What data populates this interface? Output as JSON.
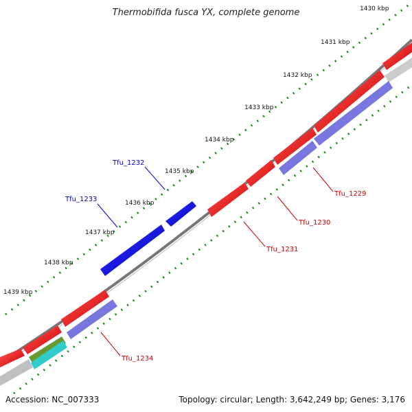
{
  "title": "Thermobifida fusca YX, complete genome",
  "footer": {
    "accession": "Accession: NC_007333",
    "summary": "Topology: circular; Length: 3,642,249 bp; Genes: 3,176"
  },
  "ticks": [
    {
      "label": "1430 kbp"
    },
    {
      "label": "1431 kbp"
    },
    {
      "label": "1432 kbp"
    },
    {
      "label": "1433 kbp"
    },
    {
      "label": "1434 kbp"
    },
    {
      "label": "1435 kbp"
    },
    {
      "label": "1436 kbp"
    },
    {
      "label": "1437 kbp"
    },
    {
      "label": "1438 kbp"
    },
    {
      "label": "1439 kbp"
    }
  ],
  "genes": [
    {
      "label": "Tfu_1229",
      "strand": "reverse",
      "color": "#cc0000"
    },
    {
      "label": "Tfu_1230",
      "strand": "reverse",
      "color": "#cc0000"
    },
    {
      "label": "Tfu_1231",
      "strand": "reverse",
      "color": "#cc0000"
    },
    {
      "label": "Tfu_1232",
      "strand": "forward",
      "color": "#0000cc"
    },
    {
      "label": "Tfu_1233",
      "strand": "forward",
      "color": "#0000cc"
    },
    {
      "label": "Tfu_1234",
      "strand": "reverse",
      "color": "#cc0000"
    }
  ],
  "colors": {
    "forward_gene": "#0000ee",
    "reverse_gene": "#ee0000",
    "cds_track": "#7777dd",
    "backbone": "#777777",
    "tick_dots": "#118811",
    "gray_feature": "#c0c0c0",
    "olive_feature": "#669933",
    "cyan_feature": "#33cccc"
  }
}
